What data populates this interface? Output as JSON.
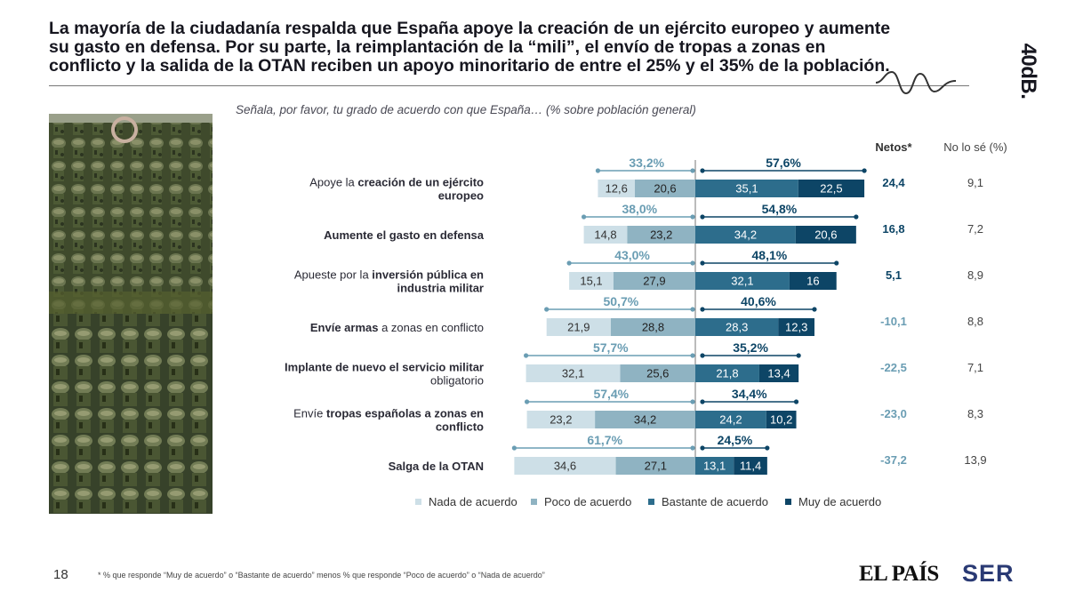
{
  "title": "La mayoría de la ciudadanía respalda que España apoye la creación de un ejército europeo y aumente su gasto en defensa. Por su parte, la reimplantación de la “mili”, el envío de tropas a zonas en conflicto y la salida de la OTAN reciben un apoyo minoritario de entre el 25% y el 35% de la población.",
  "brand": "40dB.",
  "subtitle": "Señala, por favor, tu grado de acuerdo con que España… (% sobre población general)",
  "photo_icon": "soldiers-photo",
  "colors": {
    "nada": "#cddfe7",
    "poco": "#8fb3c2",
    "bastante": "#2d6d8c",
    "muy": "#0d4566",
    "neg_total": "#6a9db3",
    "pos_total": "#0d4566",
    "neg_net": "#6a9db3",
    "pos_net": "#0d4566"
  },
  "chart_data": {
    "type": "bar",
    "subtype": "diverging-stacked",
    "headers": {
      "net": "Netos*",
      "nosabe": "No lo sé (%)"
    },
    "series": [
      "Nada de acuerdo",
      "Poco de acuerdo",
      "Bastante de acuerdo",
      "Muy de acuerdo"
    ],
    "rows": [
      {
        "label_parts": [
          {
            "t": "Apoye la ",
            "b": false
          },
          {
            "t": "creación de un ejército",
            "b": true
          },
          {
            "t": "\n",
            "b": false
          },
          {
            "t": "europeo",
            "b": true
          }
        ],
        "nada": 12.6,
        "poco": 20.6,
        "bastante": 35.1,
        "muy": 22.5,
        "nada_label": "12,6",
        "poco_label": "20,6",
        "bastante_label": "35,1",
        "muy_label": "22,5",
        "neg_total": "33,2%",
        "pos_total": "57,6%",
        "net": "24,4",
        "net_positive": true,
        "nosabe": "9,1"
      },
      {
        "label_parts": [
          {
            "t": "Aumente el gasto en defensa",
            "b": true
          }
        ],
        "nada": 14.8,
        "poco": 23.2,
        "bastante": 34.2,
        "muy": 20.6,
        "nada_label": "14,8",
        "poco_label": "23,2",
        "bastante_label": "34,2",
        "muy_label": "20,6",
        "neg_total": "38,0%",
        "pos_total": "54,8%",
        "net": "16,8",
        "net_positive": true,
        "nosabe": "7,2"
      },
      {
        "label_parts": [
          {
            "t": "Apueste por la ",
            "b": false
          },
          {
            "t": "inversión pública en",
            "b": true
          },
          {
            "t": "\n",
            "b": false
          },
          {
            "t": "industria militar",
            "b": true
          }
        ],
        "nada": 15.1,
        "poco": 27.9,
        "bastante": 32.1,
        "muy": 16,
        "nada_label": "15,1",
        "poco_label": "27,9",
        "bastante_label": "32,1",
        "muy_label": "16",
        "neg_total": "43,0%",
        "pos_total": "48,1%",
        "net": "5,1",
        "net_positive": true,
        "nosabe": "8,9"
      },
      {
        "label_parts": [
          {
            "t": "Envíe armas",
            "b": true
          },
          {
            "t": " a zonas en conflicto",
            "b": false
          }
        ],
        "nada": 21.9,
        "poco": 28.8,
        "bastante": 28.3,
        "muy": 12.3,
        "nada_label": "21,9",
        "poco_label": "28,8",
        "bastante_label": "28,3",
        "muy_label": "12,3",
        "neg_total": "50,7%",
        "pos_total": "40,6%",
        "net": "-10,1",
        "net_positive": false,
        "nosabe": "8,8"
      },
      {
        "label_parts": [
          {
            "t": "Implante de nuevo el servicio militar",
            "b": true
          },
          {
            "t": "\n",
            "b": false
          },
          {
            "t": "obligatorio",
            "b": false
          }
        ],
        "nada": 32.1,
        "poco": 25.6,
        "bastante": 21.8,
        "muy": 13.4,
        "nada_label": "32,1",
        "poco_label": "25,6",
        "bastante_label": "21,8",
        "muy_label": "13,4",
        "neg_total": "57,7%",
        "pos_total": "35,2%",
        "net": "-22,5",
        "net_positive": false,
        "nosabe": "7,1"
      },
      {
        "label_parts": [
          {
            "t": "Envíe ",
            "b": false
          },
          {
            "t": "tropas españolas a zonas en",
            "b": true
          },
          {
            "t": "\n",
            "b": false
          },
          {
            "t": "conflicto",
            "b": true
          }
        ],
        "nada": 23.2,
        "poco": 34.2,
        "bastante": 24.2,
        "muy": 10.2,
        "nada_label": "23,2",
        "poco_label": "34,2",
        "bastante_label": "24,2",
        "muy_label": "10,2",
        "neg_total": "57,4%",
        "pos_total": "34,4%",
        "net": "-23,0",
        "net_positive": false,
        "nosabe": "8,3"
      },
      {
        "label_parts": [
          {
            "t": "Salga de la OTAN",
            "b": true
          }
        ],
        "nada": 34.6,
        "poco": 27.1,
        "bastante": 13.1,
        "muy": 11.4,
        "nada_label": "34,6",
        "poco_label": "27,1",
        "bastante_label": "13,1",
        "muy_label": "11,4",
        "neg_total": "61,7%",
        "pos_total": "24,5%",
        "net": "-37,2",
        "net_positive": false,
        "nosabe": "13,9"
      }
    ]
  },
  "page_number": "18",
  "footnote": "* % que responde “Muy de acuerdo” o “Bastante de acuerdo” menos % que responde “Poco de acuerdo” o “Nada de acuerdo”",
  "logos": {
    "pais": "EL PAÍS",
    "ser": "SER"
  }
}
